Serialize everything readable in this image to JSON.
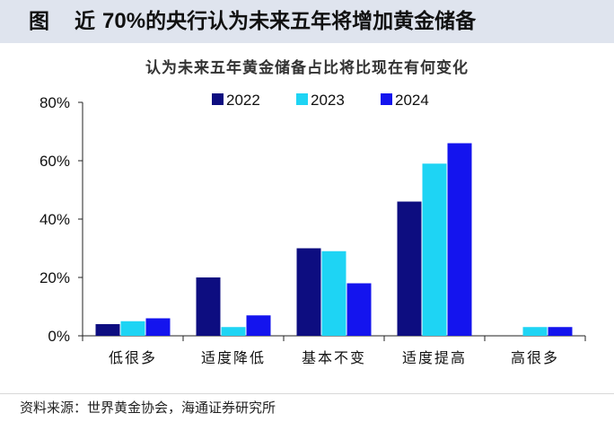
{
  "figure": {
    "label": "图",
    "title_prefix": "近",
    "title_pct": "70%",
    "title_suffix": "的央行认为未来五年将增加黄金储备",
    "source": "资料来源：世界黄金协会，海通证券研究所"
  },
  "chart_data": {
    "type": "bar",
    "title": "认为未来五年黄金储备占比将比现在有何变化",
    "categories": [
      "低很多",
      "适度降低",
      "基本不变",
      "适度提高",
      "高很多"
    ],
    "series": [
      {
        "name": "2022",
        "color": "#0d0d80",
        "values": [
          4,
          20,
          30,
          46,
          0
        ]
      },
      {
        "name": "2023",
        "color": "#1ed4f4",
        "values": [
          5,
          3,
          29,
          59,
          3
        ]
      },
      {
        "name": "2024",
        "color": "#1414ee",
        "values": [
          6,
          7,
          18,
          66,
          3
        ]
      }
    ],
    "ylim": [
      0,
      80
    ],
    "yticks": [
      0,
      20,
      40,
      60,
      80
    ],
    "ytick_labels": [
      "0%",
      "20%",
      "40%",
      "60%",
      "80%"
    ],
    "xlabel": "",
    "ylabel": "",
    "legend": "top-center",
    "grid": false
  }
}
